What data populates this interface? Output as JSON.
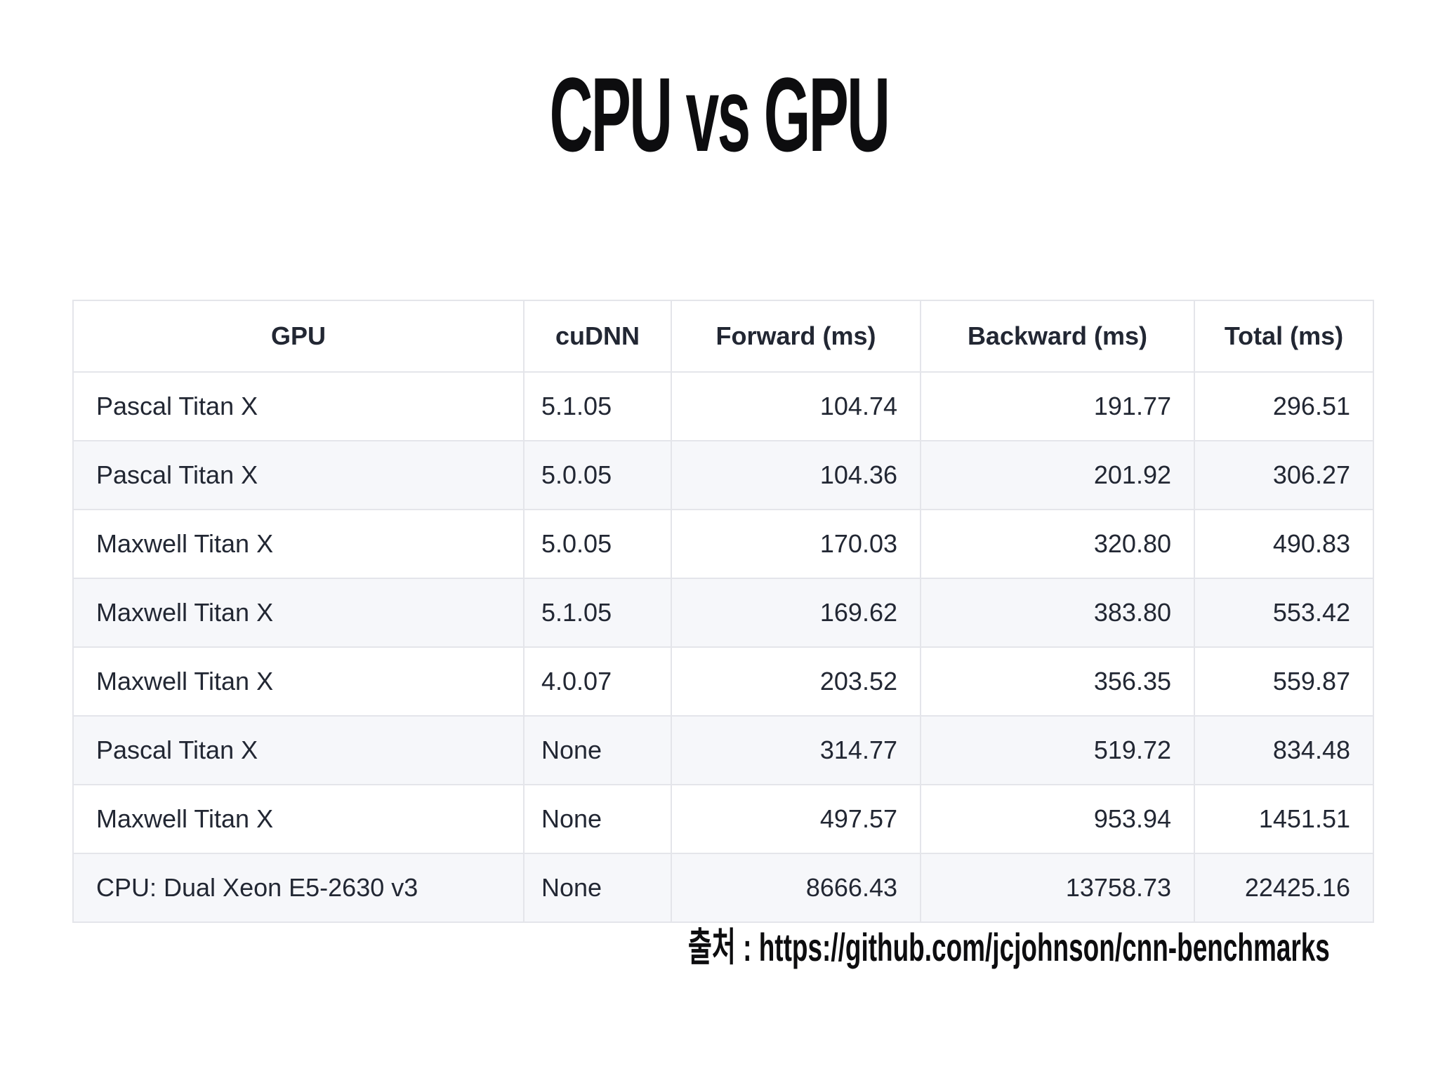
{
  "title": "CPU vs GPU",
  "table": {
    "headers": [
      "GPU",
      "cuDNN",
      "Forward (ms)",
      "Backward (ms)",
      "Total (ms)"
    ],
    "rows": [
      [
        "Pascal Titan X",
        "5.1.05",
        "104.74",
        "191.77",
        "296.51"
      ],
      [
        "Pascal Titan X",
        "5.0.05",
        "104.36",
        "201.92",
        "306.27"
      ],
      [
        "Maxwell Titan X",
        "5.0.05",
        "170.03",
        "320.80",
        "490.83"
      ],
      [
        "Maxwell Titan X",
        "5.1.05",
        "169.62",
        "383.80",
        "553.42"
      ],
      [
        "Maxwell Titan X",
        "4.0.07",
        "203.52",
        "356.35",
        "559.87"
      ],
      [
        "Pascal Titan X",
        "None",
        "314.77",
        "519.72",
        "834.48"
      ],
      [
        "Maxwell Titan X",
        "None",
        "497.57",
        "953.94",
        "1451.51"
      ],
      [
        "CPU: Dual Xeon E5-2630 v3",
        "None",
        "8666.43",
        "13758.73",
        "22425.16"
      ]
    ]
  },
  "source": "출처 : https://github.com/jcjohnson/cnn-benchmarks",
  "colors": {
    "background": "#ffffff",
    "text": "#222733",
    "title_text": "#0d0d0f",
    "row_stripe": "#f6f7fa",
    "border": "#e4e5ea"
  }
}
